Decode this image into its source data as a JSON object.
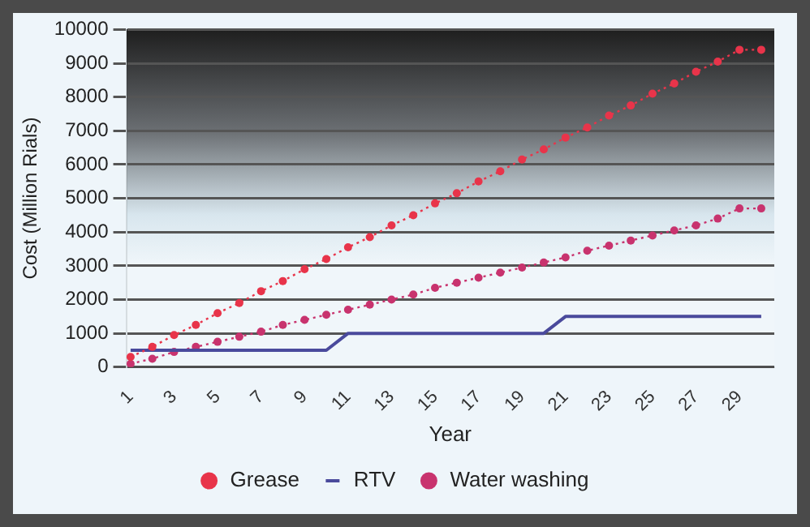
{
  "chart_data": {
    "type": "line",
    "xlabel": "Year",
    "ylabel": "Cost (Million Rials)",
    "x": [
      1,
      2,
      3,
      4,
      5,
      6,
      7,
      8,
      9,
      10,
      11,
      12,
      13,
      14,
      15,
      16,
      17,
      18,
      19,
      20,
      21,
      22,
      23,
      24,
      25,
      26,
      27,
      28,
      29,
      30
    ],
    "series": [
      {
        "name": "Grease",
        "color": "#e8344a",
        "marker": "circle",
        "line_style": "dotted",
        "values": [
          300,
          600,
          950,
          1250,
          1600,
          1900,
          2250,
          2550,
          2900,
          3200,
          3550,
          3850,
          4200,
          4500,
          4850,
          5150,
          5500,
          5800,
          6150,
          6450,
          6800,
          7100,
          7450,
          7750,
          8100,
          8400,
          8750,
          9050,
          9400,
          9400
        ]
      },
      {
        "name": "RTV",
        "color": "#4a4a9c",
        "marker": "none",
        "line_style": "solid",
        "values": [
          500,
          500,
          500,
          500,
          500,
          500,
          500,
          500,
          500,
          500,
          1000,
          1000,
          1000,
          1000,
          1000,
          1000,
          1000,
          1000,
          1000,
          1000,
          1500,
          1500,
          1500,
          1500,
          1500,
          1500,
          1500,
          1500,
          1500,
          1500
        ]
      },
      {
        "name": "Water washing",
        "color": "#c8336e",
        "marker": "circle",
        "line_style": "dotted",
        "values": [
          100,
          250,
          450,
          600,
          750,
          900,
          1050,
          1250,
          1400,
          1550,
          1700,
          1850,
          2000,
          2150,
          2350,
          2500,
          2650,
          2800,
          2950,
          3100,
          3250,
          3450,
          3600,
          3750,
          3900,
          4050,
          4200,
          4400,
          4700,
          4700
        ]
      }
    ],
    "xlim": [
      0.8,
      30.6
    ],
    "xticks": [
      1,
      3,
      5,
      7,
      9,
      11,
      13,
      15,
      17,
      19,
      21,
      23,
      25,
      27,
      29
    ],
    "ylim": [
      0,
      10000
    ],
    "yticks": [
      0,
      1000,
      2000,
      3000,
      4000,
      5000,
      6000,
      7000,
      8000,
      9000,
      10000
    ],
    "grid": "y",
    "legend": "bottom"
  }
}
